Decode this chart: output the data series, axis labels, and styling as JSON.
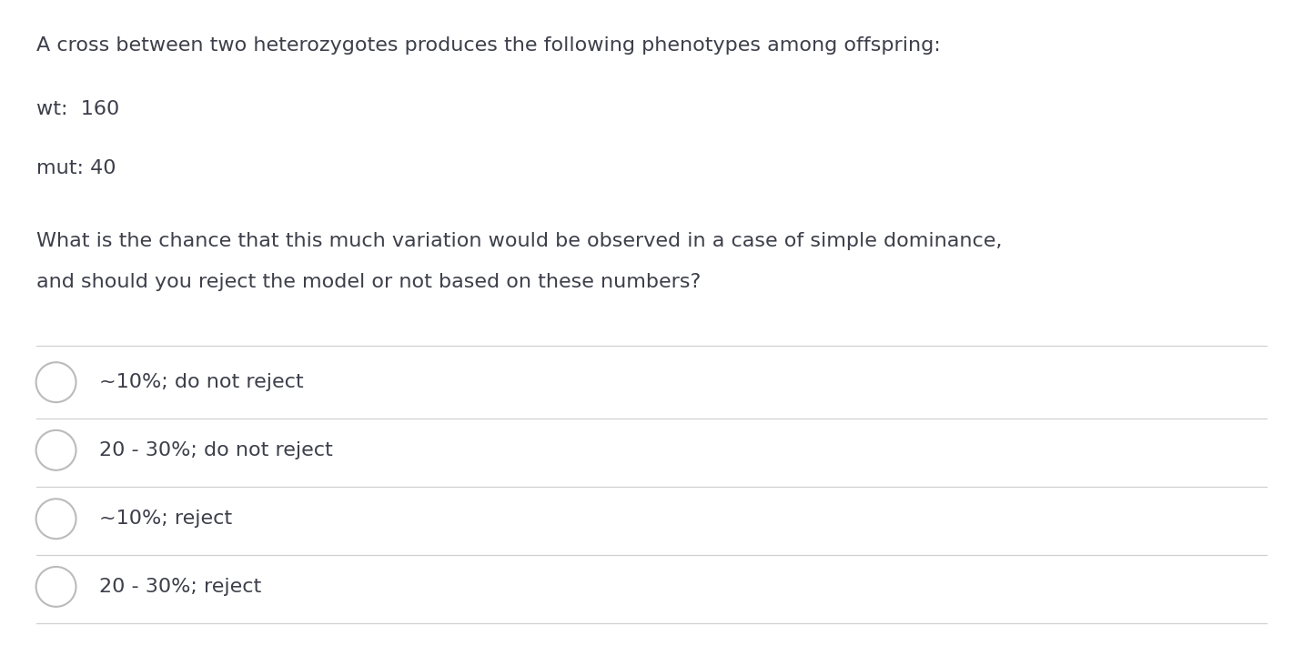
{
  "background_color": "#ffffff",
  "text_color": "#3d3f4a",
  "line_color": "#d0d0d0",
  "question_text_line1": "A cross between two heterozygotes produces the following phenotypes among offspring:",
  "question_text_line2": "wt:  160",
  "question_text_line3": "mut: 40",
  "question_text_line4": "What is the chance that this much variation would be observed in a case of simple dominance,",
  "question_text_line5": "and should you reject the model or not based on these numbers?",
  "options": [
    "~10%; do not reject",
    "20 - 30%; do not reject",
    "~10%; reject",
    "20 - 30%; reject"
  ],
  "font_size_question": 16,
  "font_size_options": 16,
  "circle_color": "#bbbbbb",
  "figsize": [
    14.32,
    7.32
  ],
  "dpi": 100
}
